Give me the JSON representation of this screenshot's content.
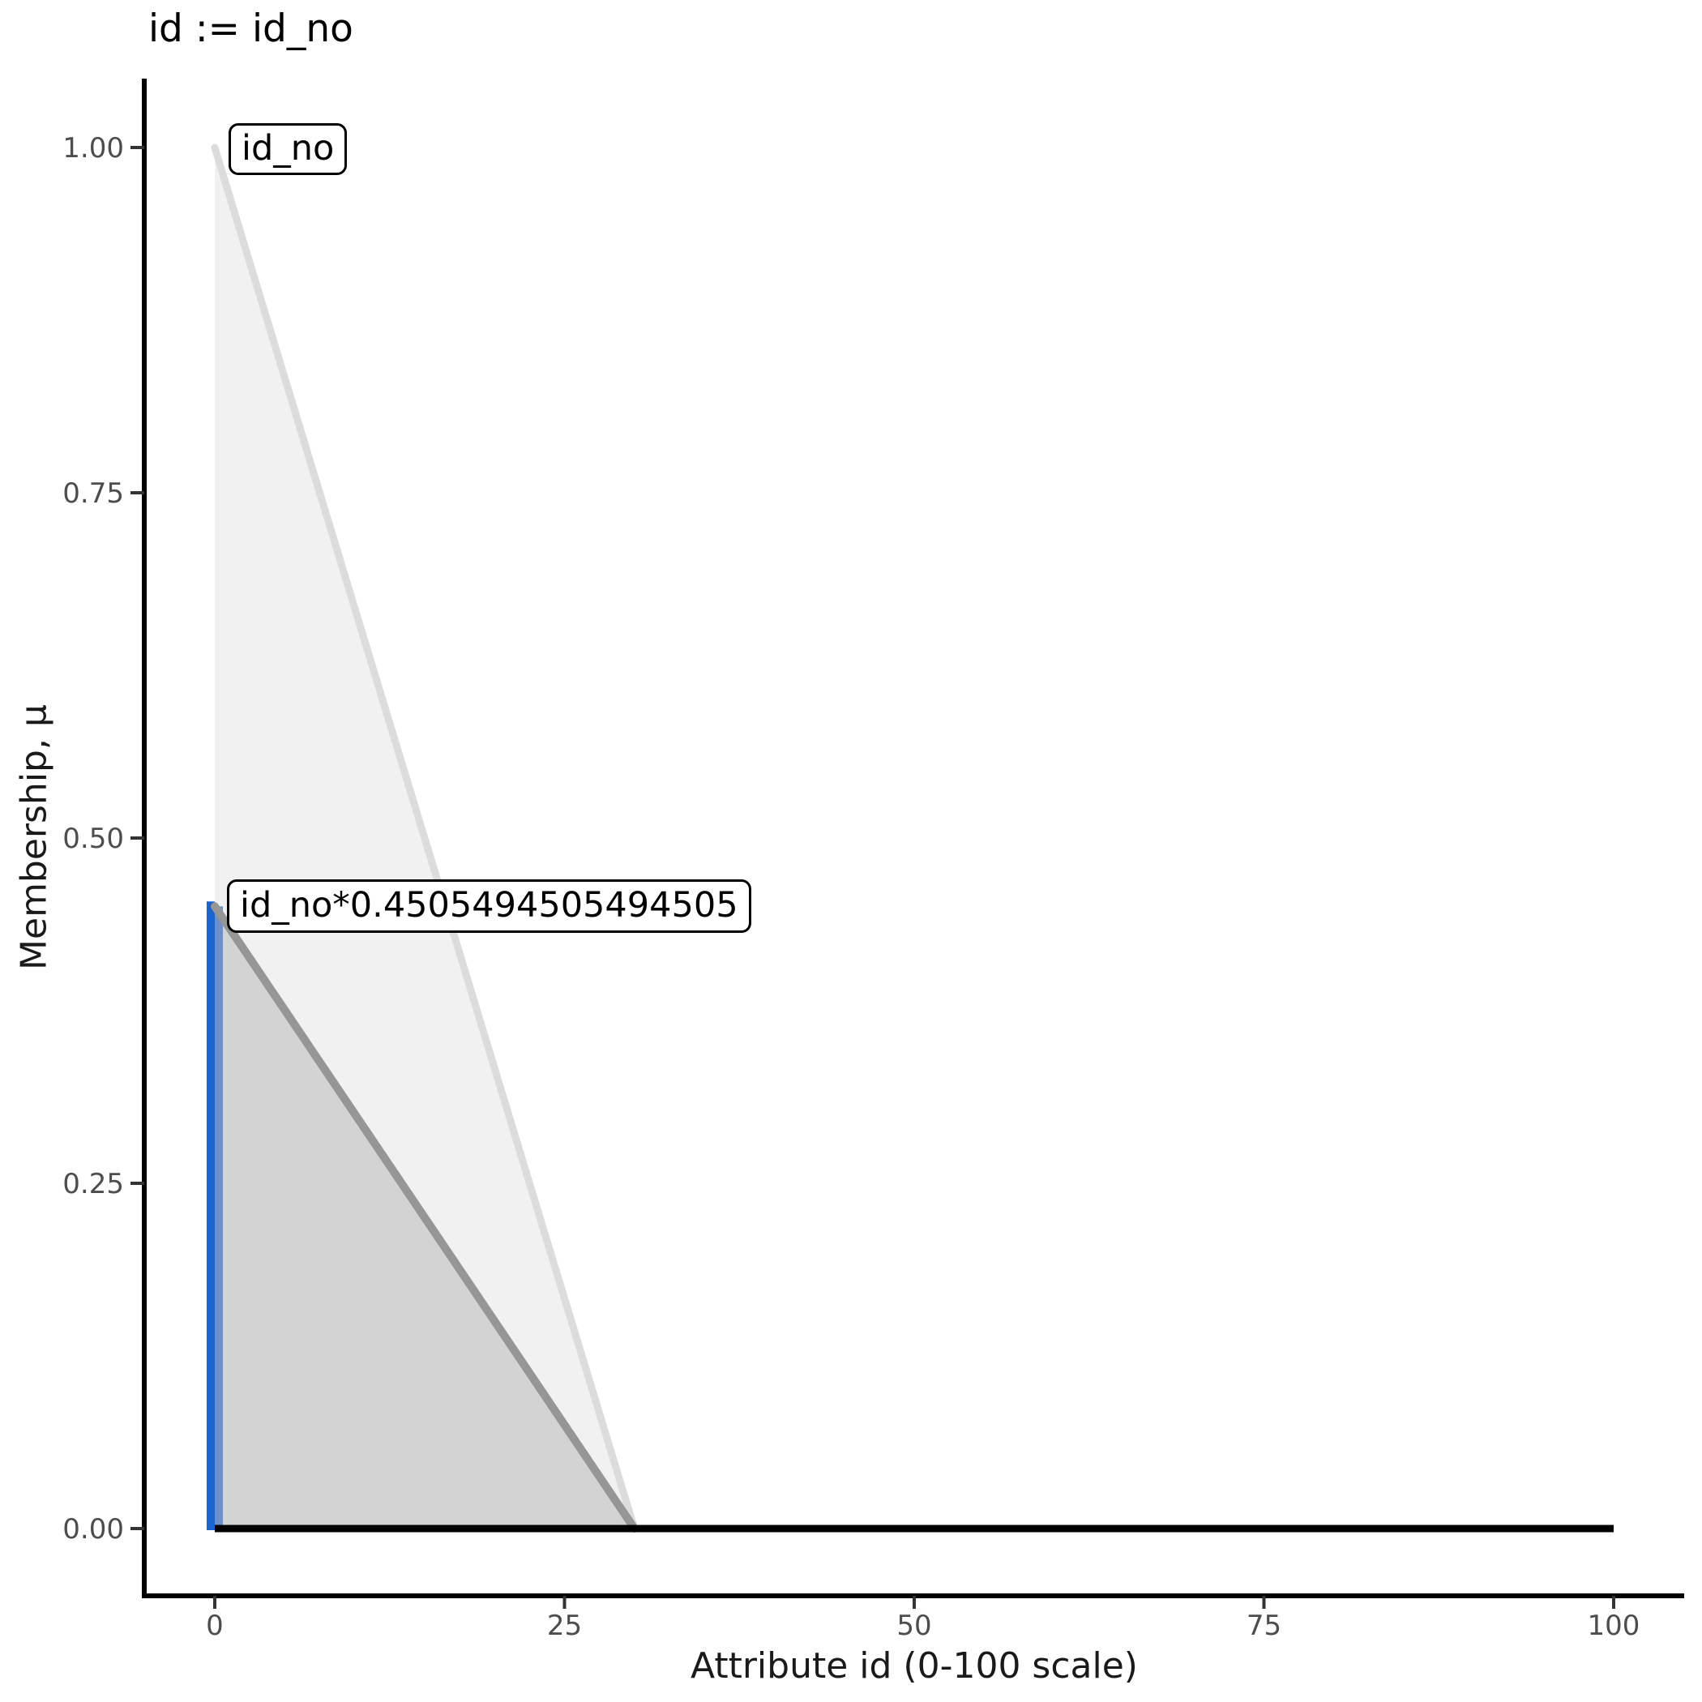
{
  "title": "id := id_no",
  "chart_data": {
    "type": "area",
    "title": "id := id_no",
    "xlabel": "Attribute id (0-100 scale)",
    "ylabel": "Membership, μ",
    "xlim": [
      0,
      100
    ],
    "ylim": [
      0,
      1
    ],
    "grid": false,
    "legend": "none",
    "x_ticks": [
      {
        "v": 0,
        "label": "0"
      },
      {
        "v": 25,
        "label": "25"
      },
      {
        "v": 50,
        "label": "50"
      },
      {
        "v": 75,
        "label": "75"
      },
      {
        "v": 100,
        "label": "100"
      }
    ],
    "y_ticks": [
      {
        "v": 0.0,
        "label": "0.00"
      },
      {
        "v": 0.25,
        "label": "0.25"
      },
      {
        "v": 0.5,
        "label": "0.50"
      },
      {
        "v": 0.75,
        "label": "0.75"
      },
      {
        "v": 1.0,
        "label": "1.00"
      }
    ],
    "series": [
      {
        "name": "id_no",
        "kind": "area",
        "points": [
          [
            0,
            1.0
          ],
          [
            30,
            0
          ]
        ],
        "fill": "#f1f1f1",
        "stroke": "#dcdcdc",
        "stroke_width": 9
      },
      {
        "name": "id_no*0.4505494505494505",
        "kind": "area",
        "points": [
          [
            0,
            0.4505494505494505
          ],
          [
            30,
            0
          ]
        ],
        "fill": "#d3d3d3",
        "stroke": "#969696",
        "stroke_width": 10
      },
      {
        "name": "zero-membership-baseline",
        "kind": "line",
        "points": [
          [
            0,
            0
          ],
          [
            100,
            0
          ]
        ],
        "stroke": "#000000",
        "stroke_width": 9
      },
      {
        "name": "activation-vline",
        "kind": "vline",
        "x": 0,
        "y0": 0,
        "y1": 0.4505494505494505,
        "stroke": "#1b63cf",
        "stroke2": "#6e90ca"
      }
    ],
    "annotations": [
      {
        "text": "id_no",
        "x": 1,
        "y": 1.0
      },
      {
        "text": "id_no*0.4505494505494505",
        "x": 0.9,
        "y": 0.4505494505494505
      }
    ]
  },
  "colors": {
    "axis_line": "#000000",
    "tick_mark": "#333333",
    "tick_label": "#4d4d4d",
    "title_text": "#000000",
    "annotation_border": "#000000",
    "annotation_bg": "#ffffff"
  }
}
